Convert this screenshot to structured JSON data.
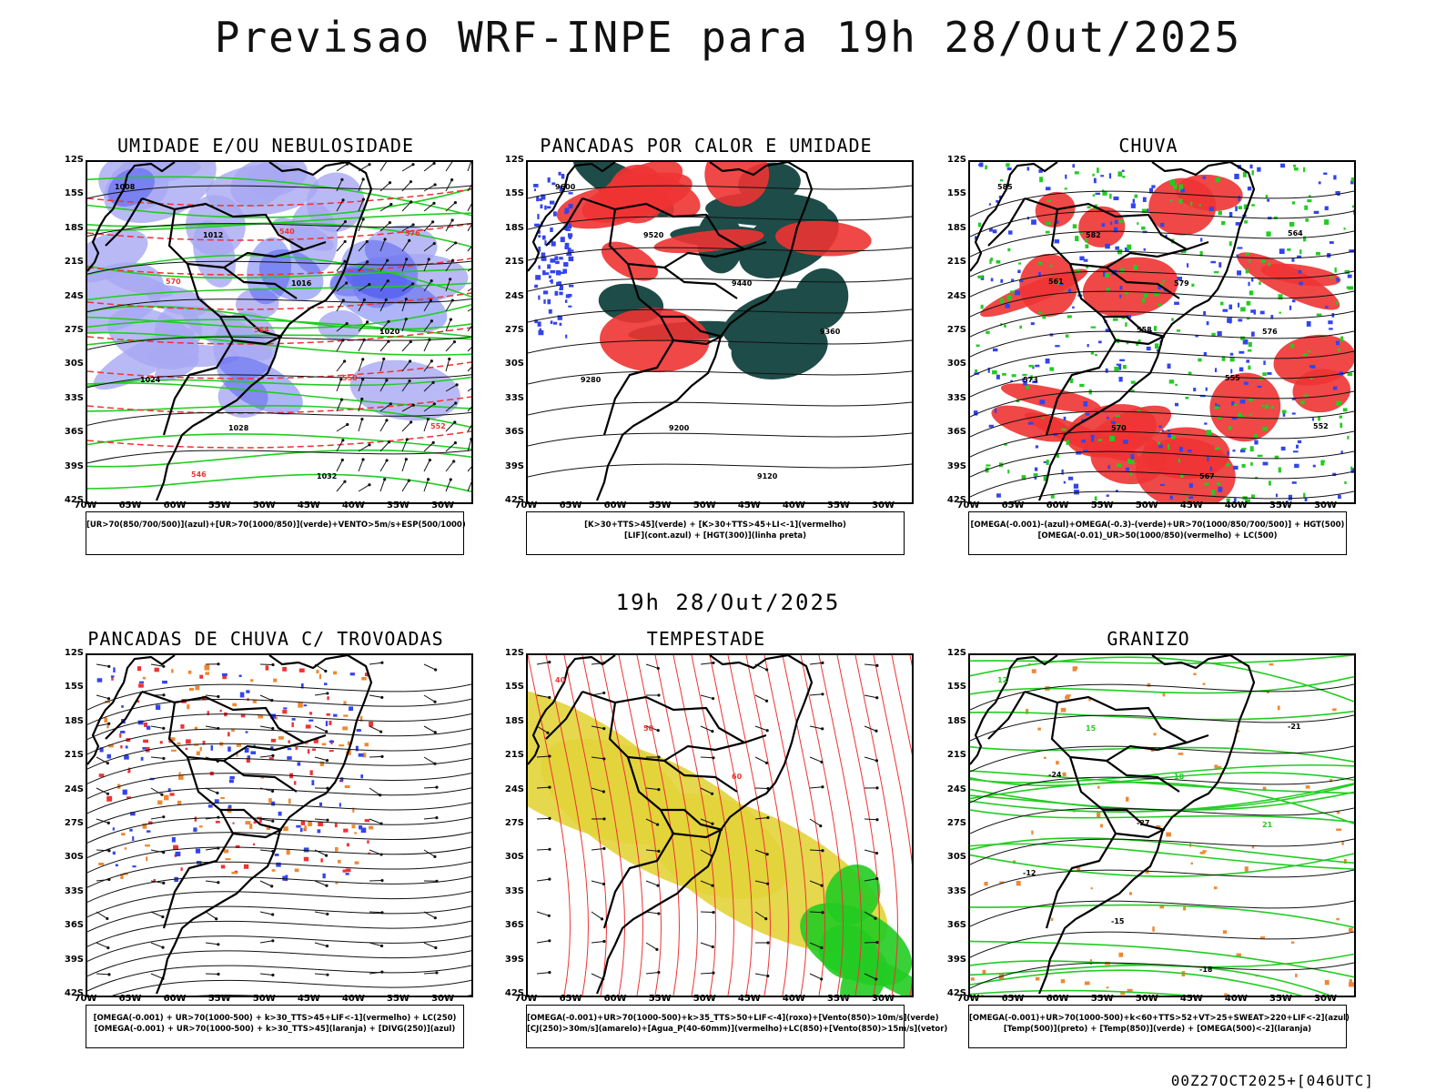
{
  "main_title": "Previsao WRF-INPE  para 19h 28/Out/2025",
  "mid_title": "19h 28/Out/2025",
  "footer": "00Z27OCT2025+[046UTC]",
  "colors": {
    "blue": "#3344ee",
    "lavender": "#a8a8f2",
    "green": "#22cc22",
    "red": "#ee3333",
    "darkteal": "#1e4c48",
    "yellow": "#e2d43a",
    "orange": "#ee8833"
  },
  "latitudes": [
    "12S",
    "15S",
    "18S",
    "21S",
    "24S",
    "27S",
    "30S",
    "33S",
    "36S",
    "39S",
    "42S"
  ],
  "longitudes": [
    "70W",
    "65W",
    "60W",
    "55W",
    "50W",
    "45W",
    "40W",
    "35W",
    "30W"
  ],
  "panels": [
    {
      "title": "UMIDADE E/OU NEBULOSIDADE",
      "legend": [
        "[UR>70(850/700/500)](azul)+[UR>70(1000/850)](verde)+VENTO>5m/s+ESP(500/1000)"
      ],
      "contour_labels": [
        "1008",
        "1012",
        "1016",
        "1020",
        "1024",
        "1028",
        "1032",
        "576",
        "570",
        "564",
        "558",
        "552",
        "546",
        "540"
      ]
    },
    {
      "title": "PANCADAS POR CALOR E UMIDADE",
      "legend": [
        "[K>30+TTS>45](verde) + [K>30+TTS>45+LI<-1](vermelho)",
        "[LIF](cont.azul) + [HGT(300)](linha preta)"
      ],
      "contour_labels": [
        "9600",
        "9520",
        "9440",
        "9360",
        "9280",
        "9200",
        "9120"
      ]
    },
    {
      "title": "CHUVA",
      "legend": [
        "[OMEGA(-0.001)-(azul)+OMEGA(-0.3)-(verde)+UR>70(1000/850/700/500)] + HGT(500)",
        "[OMEGA(-0.01)_UR>50(1000/850)(vermelho) + LC(500)"
      ],
      "contour_labels": [
        "585",
        "582",
        "579",
        "576",
        "573",
        "570",
        "567",
        "564",
        "561",
        "558",
        "555",
        "552"
      ]
    },
    {
      "title": "PANCADAS DE CHUVA C/ TROVOADAS",
      "legend": [
        "[OMEGA(-0.001) + UR>70(1000-500) + k>30_TTS>45+LIF<-1](vermelho) + LC(250)",
        "[OMEGA(-0.001) + UR>70(1000-500) + k>30_TTS>45](laranja) + [DIVG(250)](azul)"
      ],
      "contour_labels": []
    },
    {
      "title": "TEMPESTADE",
      "legend": [
        "[OMEGA(-0.001)+UR>70(1000-500)+k>35_TTS>50+LIF<-4](roxo)+[Vento(850)>10m/s](verde)",
        "[CJ(250)>30m/s](amarelo)+[Agua_P(40-60mm)](vermelho)+LC(850)+[Vento(850)>15m/s](vetor)"
      ],
      "contour_labels": [
        "40",
        "50",
        "60"
      ]
    },
    {
      "title": "GRANIZO",
      "legend": [
        "[OMEGA(-0.001)+UR>70(1000-500)+k<60+TTS>52+VT>25+SWEAT>220+LIF<-2](azul)",
        "[Temp(500)](preto) + [Temp(850)](verde) + [OMEGA(500)<-2](laranja)"
      ],
      "contour_labels": [
        "12",
        "15",
        "18",
        "21",
        "-12",
        "-15",
        "-18",
        "-21",
        "-24",
        "-27"
      ]
    }
  ]
}
